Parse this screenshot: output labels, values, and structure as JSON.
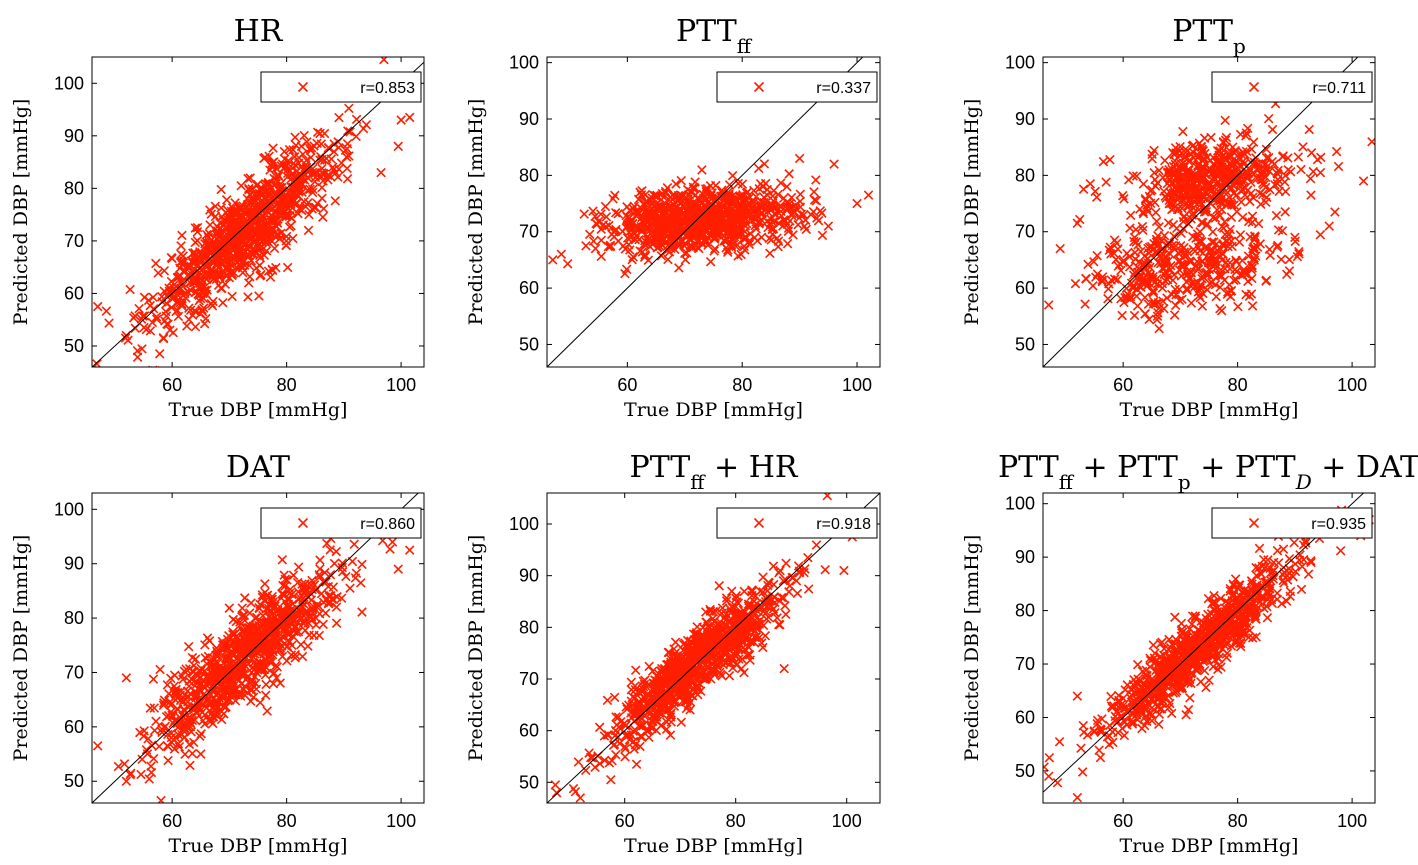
{
  "colors": {
    "marker": "#ff1f00",
    "identity_line": "#000000",
    "legend_marker": "#ff1f00"
  },
  "chart_data": [
    {
      "type": "scatter",
      "title": {
        "main": "HR",
        "sub": ""
      },
      "xlabel": "True DBP [mmHg]",
      "ylabel": "Predicted DBP [mmHg]",
      "xlim": [
        46,
        104
      ],
      "ylim": [
        46,
        105
      ],
      "xticks": [
        60,
        80,
        100
      ],
      "yticks": [
        50,
        60,
        70,
        80,
        90,
        100
      ],
      "legend": {
        "text": "r=0.853",
        "position": "top-right"
      },
      "identity_line": true,
      "r": 0.853,
      "mean_pred": 72,
      "spread": 4.3,
      "outliers": [
        [
          97.0,
          104.5
        ],
        [
          100.0,
          93.0
        ],
        [
          101.5,
          93.5
        ],
        [
          96.5,
          83.0
        ],
        [
          99.5,
          88.0
        ],
        [
          47.0,
          57.5
        ],
        [
          52.0,
          52.0
        ]
      ]
    },
    {
      "type": "scatter",
      "title": {
        "main": "PTT",
        "sub": "ff"
      },
      "xlabel": "True DBP [mmHg]",
      "ylabel": "Predicted DBP [mmHg]",
      "xlim": [
        46,
        104
      ],
      "ylim": [
        46,
        101
      ],
      "xticks": [
        60,
        80,
        100
      ],
      "yticks": [
        50,
        60,
        70,
        80,
        90,
        100
      ],
      "legend": {
        "text": "r=0.337",
        "position": "top-right"
      },
      "identity_line": true,
      "r": 0.337,
      "mean_pred": 72,
      "spread": 2.8,
      "outliers": [
        [
          47.0,
          65.0
        ],
        [
          48.5,
          66.0
        ],
        [
          90.0,
          83.0
        ],
        [
          96.0,
          82.0
        ],
        [
          102.0,
          76.5
        ],
        [
          100.0,
          75.0
        ],
        [
          95.0,
          71.0
        ]
      ]
    },
    {
      "type": "scatter",
      "title": {
        "main": "PTT",
        "sub": "p"
      },
      "xlabel": "True DBP [mmHg]",
      "ylabel": "Predicted DBP [mmHg]",
      "xlim": [
        46,
        104
      ],
      "ylim": [
        46,
        101
      ],
      "xticks": [
        60,
        80,
        100
      ],
      "yticks": [
        50,
        60,
        70,
        80,
        90,
        100
      ],
      "legend": {
        "text": "r=0.711",
        "position": "top-right"
      },
      "identity_line": true,
      "r": 0.711,
      "mean_pred": 72,
      "spread": 3.6,
      "outliers": [
        [
          47.0,
          57.0
        ],
        [
          49.0,
          67.0
        ],
        [
          52.0,
          71.5
        ],
        [
          66.0,
          55.0
        ],
        [
          96.0,
          71.0
        ],
        [
          97.0,
          73.5
        ],
        [
          102.0,
          79.0
        ],
        [
          90.0,
          69.0
        ]
      ]
    },
    {
      "type": "scatter",
      "title": {
        "main": "DAT",
        "sub": ""
      },
      "xlabel": "True DBP [mmHg]",
      "ylabel": "Predicted DBP [mmHg]",
      "xlim": [
        46,
        104
      ],
      "ylim": [
        46,
        103
      ],
      "xticks": [
        60,
        80,
        100
      ],
      "yticks": [
        50,
        60,
        70,
        80,
        90,
        100
      ],
      "legend": {
        "text": "r=0.860",
        "position": "top-right"
      },
      "identity_line": true,
      "r": 0.86,
      "mean_pred": 73,
      "spread": 4.2,
      "outliers": [
        [
          52.0,
          50.0
        ],
        [
          52.0,
          69.0
        ],
        [
          99.5,
          89.0
        ],
        [
          101.5,
          92.5
        ],
        [
          98.5,
          94.0
        ],
        [
          47.0,
          56.5
        ],
        [
          65.0,
          55.0
        ]
      ]
    },
    {
      "type": "scatter",
      "title": {
        "main": "PTT",
        "sub": "ff",
        "suffix": " + HR"
      },
      "xlabel": "True DBP [mmHg]",
      "ylabel": "Predicted DBP [mmHg]",
      "xlim": [
        46,
        106
      ],
      "ylim": [
        46,
        106
      ],
      "xticks": [
        60,
        80,
        100
      ],
      "yticks": [
        50,
        60,
        70,
        80,
        90,
        100
      ],
      "legend": {
        "text": "r=0.918",
        "position": "top-right"
      },
      "identity_line": true,
      "r": 0.918,
      "mean_pred": 73,
      "spread": 3.4,
      "outliers": [
        [
          52.0,
          47.0
        ],
        [
          47.5,
          49.5
        ],
        [
          57.5,
          50.5
        ],
        [
          96.5,
          105.5
        ],
        [
          101.0,
          97.5
        ],
        [
          93.0,
          93.5
        ],
        [
          99.5,
          91.0
        ]
      ]
    },
    {
      "type": "scatter",
      "title": {
        "main": "PTT",
        "sub": "ff",
        "suffix": " + PTT",
        "sub2": "p",
        "suffix2": " + PTT",
        "sub3": "D",
        "suffix3": " + DAT"
      },
      "xlabel": "True DBP [mmHg]",
      "ylabel": "Predicted DBP [mmHg]",
      "xlim": [
        46,
        104
      ],
      "ylim": [
        44,
        102
      ],
      "xticks": [
        60,
        80,
        100
      ],
      "yticks": [
        50,
        60,
        70,
        80,
        90,
        100
      ],
      "legend": {
        "text": "r=0.935",
        "position": "top-right"
      },
      "identity_line": true,
      "r": 0.935,
      "mean_pred": 73,
      "spread": 2.9,
      "outliers": [
        [
          52.0,
          45.0
        ],
        [
          47.0,
          49.0
        ],
        [
          52.0,
          64.0
        ],
        [
          71.0,
          60.5
        ],
        [
          101.5,
          94.0
        ],
        [
          103.0,
          97.0
        ],
        [
          95.0,
          94.5
        ]
      ]
    }
  ]
}
